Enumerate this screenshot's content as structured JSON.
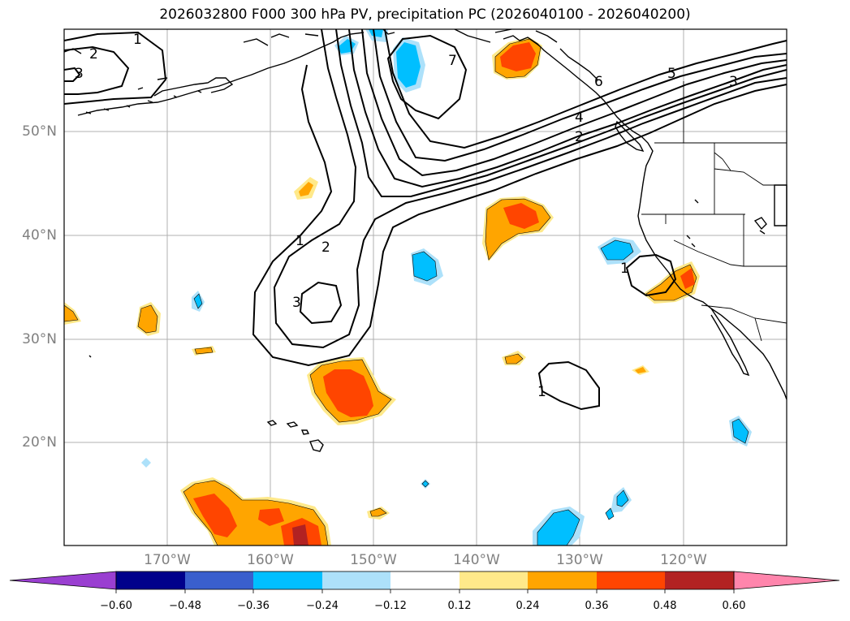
{
  "figure": {
    "title": "2026032800 F000 300 hPa PV, precipitation PC (2026040100 - 2026040200)"
  },
  "map": {
    "lat_labels": [
      "50°N",
      "40°N",
      "30°N",
      "20°N"
    ],
    "lon_labels": [
      "170°W",
      "160°W",
      "150°W",
      "140°W",
      "130°W",
      "120°W"
    ],
    "contour_labels": [
      "2",
      "3",
      "1",
      "7",
      "6",
      "5",
      "4",
      "2",
      "3",
      "1",
      "2",
      "3",
      "1",
      "1"
    ]
  },
  "colorbar": {
    "tick_labels": [
      "−0.60",
      "−0.48",
      "−0.36",
      "−0.24",
      "−0.12",
      "0.12",
      "0.24",
      "0.36",
      "0.48",
      "0.60"
    ],
    "colors": [
      "#9a3fd1",
      "#00008b",
      "#3a5fcd",
      "#00bfff",
      "#ade1fa",
      "#ffffff",
      "#ffe98a",
      "#ffa500",
      "#ff4500",
      "#b22222",
      "#ff85ac"
    ]
  }
}
